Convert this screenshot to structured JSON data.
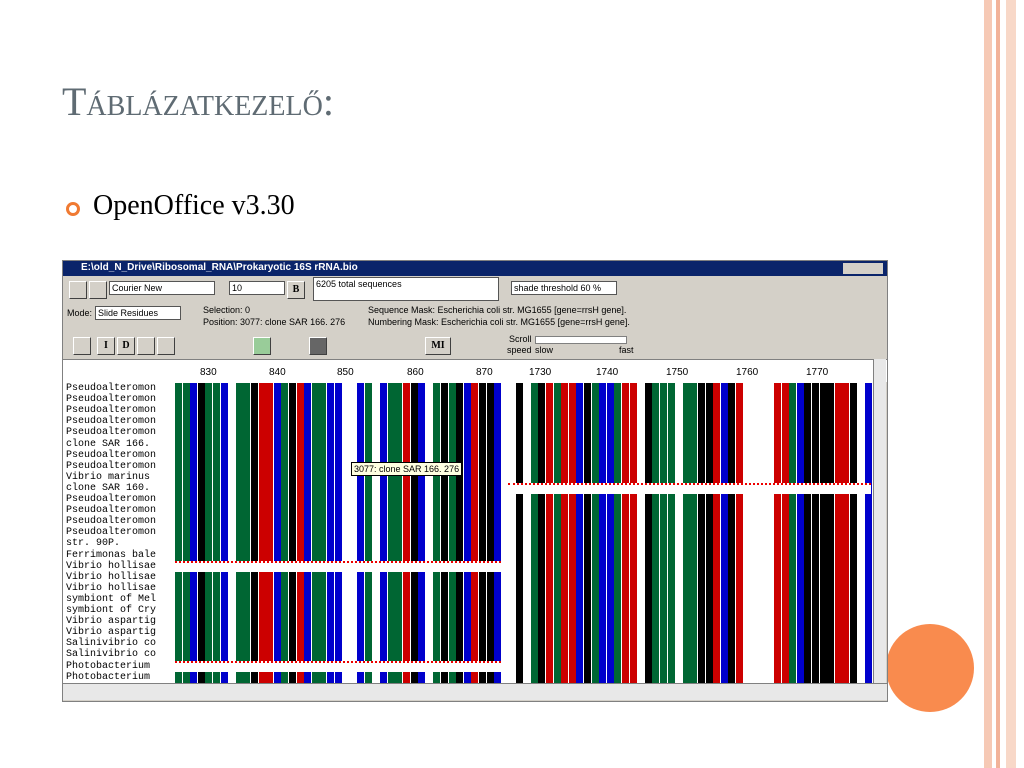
{
  "slide": {
    "title": "Táblázatkezelő:",
    "bullets": [
      "OpenOffice v3.30"
    ]
  },
  "window": {
    "title": "E:\\old_N_Drive\\Ribosomal_RNA\\Prokaryotic 16S rRNA.bio",
    "font": "Courier New",
    "size": "10",
    "bold": "B",
    "total": "6205 total sequences",
    "threshold": "shade threshold 60 %",
    "mode_label": "Mode:",
    "mode": "Slide Residues",
    "selection": "Selection: 0",
    "position": "Position:   3077: clone SAR 166. 276",
    "sequence_mask": "Sequence Mask:  Escherichia coli str. MG1655 [gene=rrsH gene].",
    "numbering_mask": "Numbering Mask:  Escherichia coli str. MG1655 [gene=rrsH gene].",
    "scroll": "Scroll",
    "speed": "speed",
    "slow": "slow",
    "fast": "fast",
    "buttons": [
      "I",
      "D",
      "MI"
    ],
    "ruler_left": [
      830,
      840,
      850,
      860,
      870
    ],
    "ruler_right": [
      1730,
      1740,
      1750,
      1760,
      1770
    ],
    "names": [
      "Pseudoalteromon",
      "Pseudoalteromon",
      "Pseudoalteromon",
      "Pseudoalteromon",
      "Pseudoalteromon",
      "clone SAR 166.",
      "Pseudoalteromon",
      "Pseudoalteromon",
      "Vibrio marinus",
      "clone SAR 160.",
      "Pseudoalteromon",
      "Pseudoalteromon",
      "Pseudoalteromon",
      "Pseudoalteromon",
      "str. 90P.",
      "Ferrimonas bale",
      "Vibrio hollisae",
      "Vibrio hollisae",
      "Vibrio hollisae",
      "symbiont of Mel",
      "symbiont of Cry",
      "Vibrio aspartig",
      "Vibrio aspartig",
      "Salinivibrio co",
      "Salinivibrio co",
      "Photobacterium",
      "Photobacterium"
    ],
    "tooltip": "3077: clone SAR 166. 276"
  }
}
